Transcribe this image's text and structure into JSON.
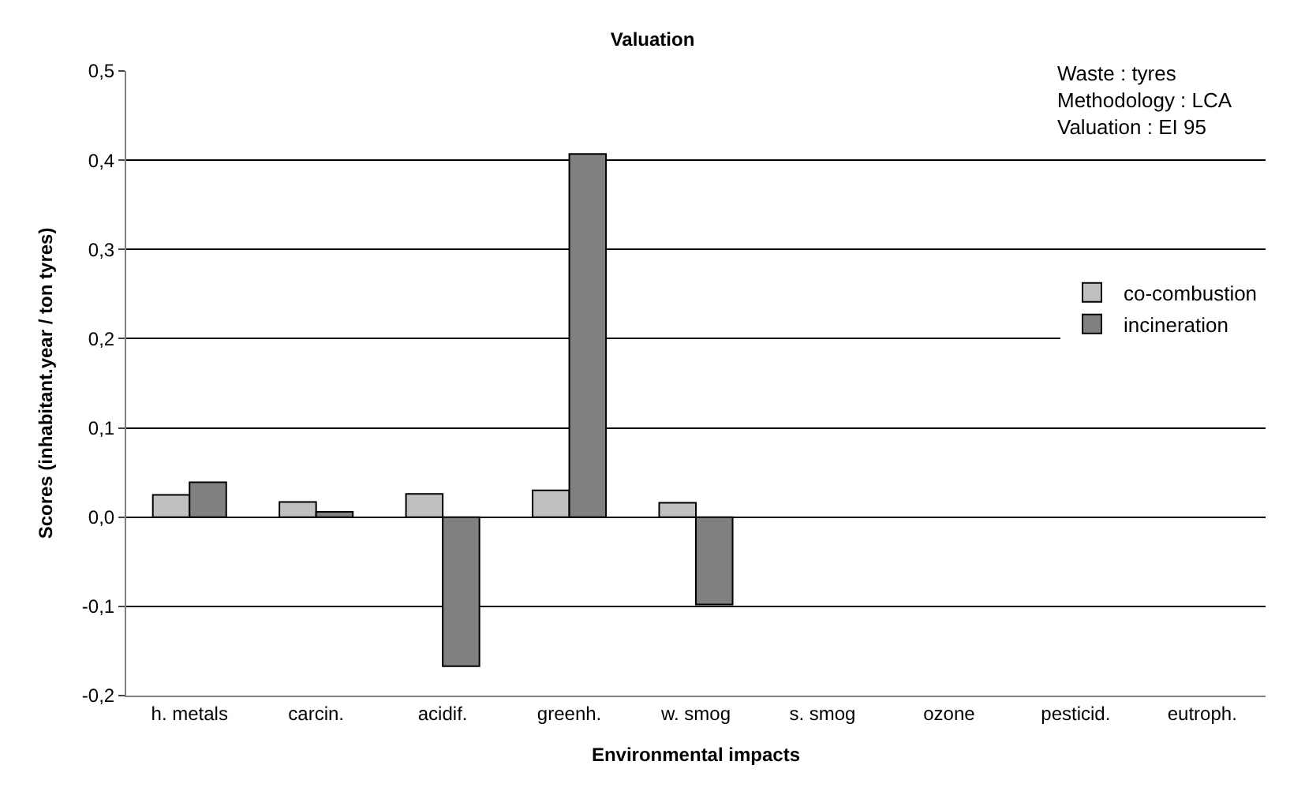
{
  "chart_data": {
    "type": "bar",
    "title": "Valuation",
    "xlabel": "Environmental impacts",
    "ylabel": "Scores (inhabitant.year / ton tyres)",
    "categories": [
      "h. metals",
      "carcin.",
      "acidif.",
      "greenh.",
      "w. smog",
      "s. smog",
      "ozone",
      "pesticid.",
      "eutroph."
    ],
    "series": [
      {
        "name": "co-combustion",
        "color": "#c0c0c0",
        "values": [
          0.025,
          0.017,
          0.026,
          0.03,
          0.016,
          null,
          null,
          null,
          null
        ]
      },
      {
        "name": "incineration",
        "color": "#808080",
        "values": [
          0.039,
          0.006,
          -0.167,
          0.407,
          -0.098,
          null,
          null,
          null,
          null
        ]
      }
    ],
    "ylim": [
      -0.2,
      0.5
    ],
    "yticks": [
      {
        "value": -0.2,
        "label": "-0,2"
      },
      {
        "value": -0.1,
        "label": "-0,1"
      },
      {
        "value": 0,
        "label": "0,0"
      },
      {
        "value": 0.1,
        "label": "0,1"
      },
      {
        "value": 0.2,
        "label": "0,2"
      },
      {
        "value": 0.3,
        "label": "0,3"
      },
      {
        "value": 0.4,
        "label": "0,4"
      },
      {
        "value": 0.5,
        "label": "0,5"
      }
    ],
    "grid": "y",
    "legend": "right",
    "annotations": [
      "Waste : tyres\nMethodology : LCA\nValuation : EI 95"
    ]
  }
}
